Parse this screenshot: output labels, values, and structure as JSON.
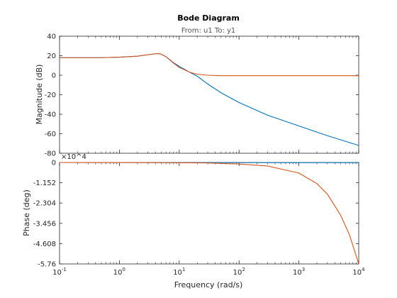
{
  "title": "Bode Diagram",
  "subtitle": "From: u1  To: y1",
  "chart_data": [
    {
      "type": "line",
      "panel": "magnitude",
      "xscale": "log",
      "xlim": [
        0.1,
        10000
      ],
      "ylim": [
        -80,
        40
      ],
      "ylabel": "Magnitude (dB)",
      "yticks": [
        40,
        20,
        0,
        -20,
        -40,
        -60,
        -80
      ],
      "ytick_labels": [
        "40",
        "20",
        "0",
        "-20",
        "-40",
        "-60",
        "-80"
      ],
      "grid": false,
      "series": [
        {
          "color": "#0072bd",
          "x": [
            0.1,
            0.5,
            1,
            2,
            3,
            4,
            4.8,
            6,
            8,
            10,
            15,
            20,
            30,
            50,
            100,
            300,
            1000,
            3000,
            10000
          ],
          "y": [
            18,
            18,
            18.5,
            19.5,
            21,
            22,
            22,
            19,
            13,
            9,
            3,
            -1,
            -9,
            -18,
            -28,
            -41,
            -52,
            -62,
            -72
          ]
        },
        {
          "color": "#d95319",
          "x": [
            0.1,
            0.5,
            1,
            2,
            3,
            4,
            4.8,
            6,
            8,
            10,
            15,
            20,
            30,
            50,
            100,
            1000,
            10000
          ],
          "y": [
            18,
            18,
            18.5,
            19.5,
            21,
            22,
            22,
            19,
            12.5,
            8,
            3,
            1,
            0,
            -0.5,
            -0.5,
            -0.5,
            -0.5
          ]
        }
      ]
    },
    {
      "type": "line",
      "panel": "phase",
      "xscale": "log",
      "xlim": [
        0.1,
        10000
      ],
      "ylim": [
        -5.76,
        0
      ],
      "ylabel": "Phase (deg)",
      "yaxis_exponent": "×10^4",
      "yticks": [
        0,
        -1.152,
        -2.304,
        -3.456,
        -4.608,
        -5.76
      ],
      "ytick_labels": [
        "0",
        "-1.152",
        "-2.304",
        "-3.456",
        "-4.608",
        "-5.76"
      ],
      "xlabel": "Frequency  (rad/s)",
      "xticks": [
        0.1,
        1,
        10,
        100,
        1000,
        10000
      ],
      "xtick_bases": [
        "10",
        "10",
        "10",
        "10",
        "10",
        "10"
      ],
      "xtick_exps": [
        "-1",
        "0",
        "1",
        "2",
        "3",
        "4"
      ],
      "grid": false,
      "series": [
        {
          "color": "#0072bd",
          "x": [
            0.1,
            1,
            10,
            100,
            1000,
            10000
          ],
          "y": [
            0,
            -0.005,
            -0.01,
            -0.01,
            -0.01,
            -0.01
          ]
        },
        {
          "color": "#d95319",
          "x": [
            0.1,
            1,
            10,
            30,
            100,
            300,
            1000,
            2000,
            3000,
            5000,
            7000,
            10000
          ],
          "y": [
            0,
            -0.002,
            -0.01,
            -0.03,
            -0.09,
            -0.2,
            -0.6,
            -1.2,
            -1.8,
            -3.0,
            -4.1,
            -5.76
          ]
        }
      ]
    }
  ]
}
